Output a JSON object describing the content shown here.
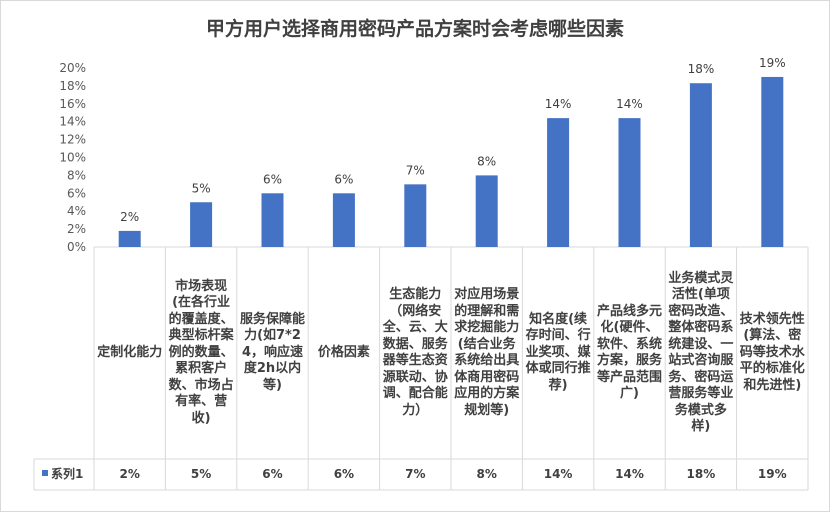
{
  "chart_data": {
    "type": "bar",
    "title": "甲方用户选择商用密码产品方案时会考虑哪些因素",
    "categories": [
      "定制化能力",
      "市场表现(在各行业的覆盖度、典型标杆案例的数量、累积客户数、市场占有率、营收)",
      "服务保障能力(如7*24，响应速度2h以内等)",
      "价格因素",
      "生态能力（网络安全、云、大数据、服务器等生态资源联动、协调、配合能力）",
      "对应用场景的理解和需求挖掘能力(结合业务系统给出具体商用密码应用的方案规划等)",
      "知名度(续存时间、行业奖项、媒体或同行推荐)",
      "产品线多元化(硬件、软件、系统方案，服务等产品范围广)",
      "业务模式灵活性(单项密码改造、整体密码系统建设、一站式咨询服务、密码运营服务等业务模式多样)",
      "技术领先性(算法、密码等技术水平的标准化和先进性)"
    ],
    "series": [
      {
        "name": "系列1",
        "values": [
          0.018,
          0.05,
          0.06,
          0.06,
          0.07,
          0.08,
          0.144,
          0.144,
          0.183,
          0.19
        ],
        "labels": [
          "2%",
          "5%",
          "6%",
          "6%",
          "7%",
          "8%",
          "14%",
          "14%",
          "18%",
          "19%"
        ]
      }
    ],
    "y_ticks": [
      "0%",
      "2%",
      "4%",
      "6%",
      "8%",
      "10%",
      "12%",
      "14%",
      "16%",
      "18%",
      "20%"
    ],
    "ylim": [
      0,
      0.2
    ],
    "grid": false,
    "data_table": true,
    "colors": {
      "bar": "#4472c4",
      "axis": "#d9d9d9"
    }
  }
}
